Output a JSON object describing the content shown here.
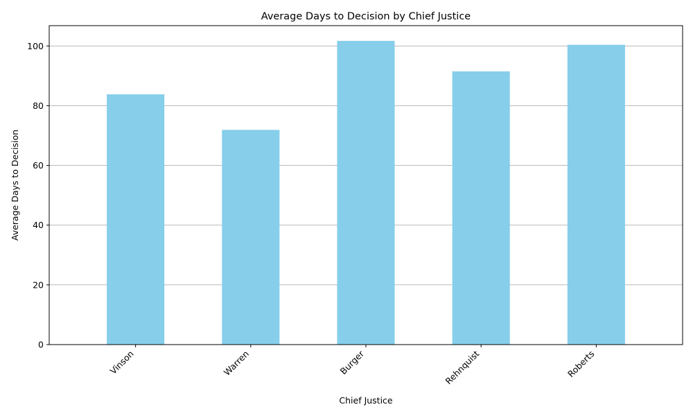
{
  "chart_data": {
    "type": "bar",
    "title": "Average Days to Decision by Chief Justice",
    "xlabel": "Chief Justice",
    "ylabel": "Average Days to Decision",
    "categories": [
      "Vinson",
      "Warren",
      "Burger",
      "Rehnquist",
      "Roberts"
    ],
    "values": [
      83.8,
      71.9,
      101.7,
      91.5,
      100.4
    ],
    "ylim": [
      0,
      106.8
    ],
    "yticks": [
      0,
      20,
      40,
      60,
      80,
      100
    ],
    "grid": "y",
    "bar_color": "#87ceeb",
    "xtick_rotation": 45
  }
}
